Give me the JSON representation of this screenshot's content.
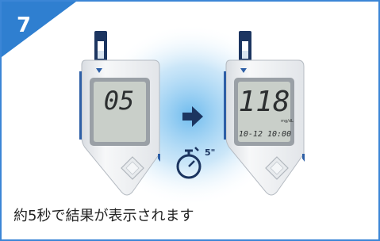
{
  "step": "7",
  "meters": [
    {
      "display": "05"
    },
    {
      "display": "118",
      "unit": "mg/dL",
      "datetime": "10-12 10:00"
    }
  ],
  "timer": "5\"",
  "caption": "約5秒で結果が表示されます"
}
